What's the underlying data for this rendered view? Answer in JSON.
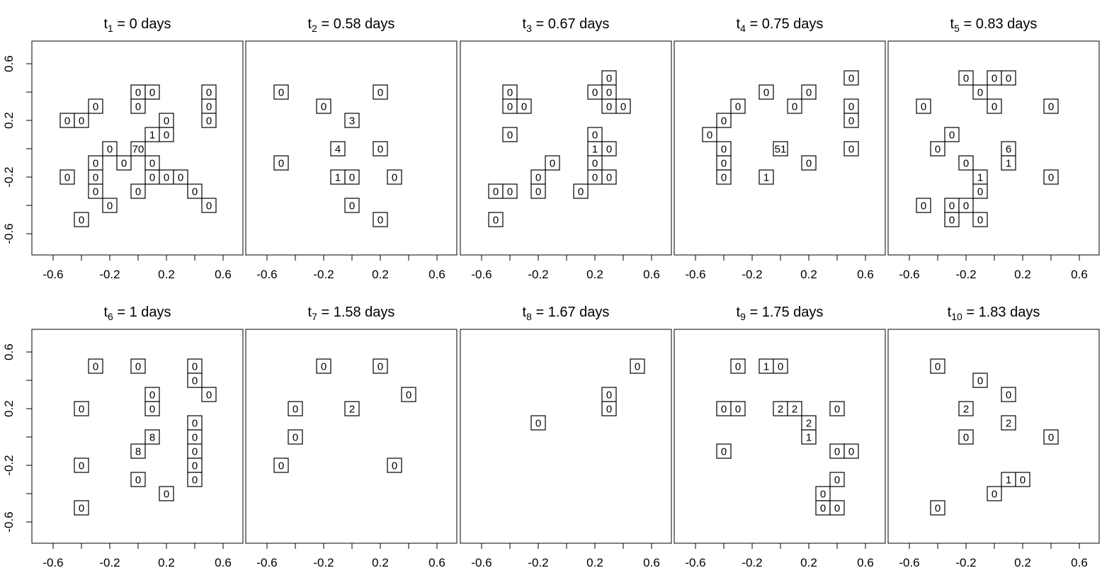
{
  "figure": {
    "axis_ticks": [
      "-0.6",
      "-0.2",
      "0.2",
      "0.6"
    ]
  },
  "chart_data": [
    {
      "type": "scatter",
      "title_sub": "1",
      "title_rest": " = 0 days",
      "xlim": [
        -0.6,
        0.6
      ],
      "ylim": [
        -0.6,
        0.6
      ],
      "cells": [
        {
          "x": -0.5,
          "y": 0.2,
          "v": "0"
        },
        {
          "x": -0.4,
          "y": 0.2,
          "v": "0"
        },
        {
          "x": -0.3,
          "y": 0.3,
          "v": "0"
        },
        {
          "x": 0.0,
          "y": 0.4,
          "v": "0"
        },
        {
          "x": 0.1,
          "y": 0.4,
          "v": "0"
        },
        {
          "x": 0.0,
          "y": 0.3,
          "v": "0"
        },
        {
          "x": 0.5,
          "y": 0.4,
          "v": "0"
        },
        {
          "x": 0.5,
          "y": 0.3,
          "v": "0"
        },
        {
          "x": 0.5,
          "y": 0.2,
          "v": "0"
        },
        {
          "x": 0.2,
          "y": 0.2,
          "v": "0"
        },
        {
          "x": 0.1,
          "y": 0.1,
          "v": "1"
        },
        {
          "x": 0.2,
          "y": 0.1,
          "v": "0"
        },
        {
          "x": -0.2,
          "y": 0.0,
          "v": "0"
        },
        {
          "x": 0.0,
          "y": 0.0,
          "v": "70"
        },
        {
          "x": -0.3,
          "y": -0.1,
          "v": "0"
        },
        {
          "x": -0.1,
          "y": -0.1,
          "v": "0"
        },
        {
          "x": 0.1,
          "y": -0.1,
          "v": "0"
        },
        {
          "x": -0.5,
          "y": -0.2,
          "v": "0"
        },
        {
          "x": -0.3,
          "y": -0.2,
          "v": "0"
        },
        {
          "x": 0.1,
          "y": -0.2,
          "v": "0"
        },
        {
          "x": 0.2,
          "y": -0.2,
          "v": "0"
        },
        {
          "x": 0.3,
          "y": -0.2,
          "v": "0"
        },
        {
          "x": -0.3,
          "y": -0.3,
          "v": "0"
        },
        {
          "x": 0.0,
          "y": -0.3,
          "v": "0"
        },
        {
          "x": 0.4,
          "y": -0.3,
          "v": "0"
        },
        {
          "x": -0.2,
          "y": -0.4,
          "v": "0"
        },
        {
          "x": 0.5,
          "y": -0.4,
          "v": "0"
        },
        {
          "x": -0.4,
          "y": -0.5,
          "v": "0"
        }
      ]
    },
    {
      "type": "scatter",
      "title_sub": "2",
      "title_rest": " = 0.58 days",
      "xlim": [
        -0.6,
        0.6
      ],
      "ylim": [
        -0.6,
        0.6
      ],
      "cells": [
        {
          "x": -0.5,
          "y": 0.4,
          "v": "0"
        },
        {
          "x": 0.2,
          "y": 0.4,
          "v": "0"
        },
        {
          "x": -0.2,
          "y": 0.3,
          "v": "0"
        },
        {
          "x": 0.0,
          "y": 0.2,
          "v": "3"
        },
        {
          "x": -0.1,
          "y": 0.0,
          "v": "4"
        },
        {
          "x": 0.2,
          "y": 0.0,
          "v": "0"
        },
        {
          "x": -0.5,
          "y": -0.1,
          "v": "0"
        },
        {
          "x": -0.1,
          "y": -0.2,
          "v": "1"
        },
        {
          "x": 0.0,
          "y": -0.2,
          "v": "0"
        },
        {
          "x": 0.3,
          "y": -0.2,
          "v": "0"
        },
        {
          "x": 0.0,
          "y": -0.4,
          "v": "0"
        },
        {
          "x": 0.2,
          "y": -0.5,
          "v": "0"
        }
      ]
    },
    {
      "type": "scatter",
      "title_sub": "3",
      "title_rest": " = 0.67 days",
      "xlim": [
        -0.6,
        0.6
      ],
      "ylim": [
        -0.6,
        0.6
      ],
      "cells": [
        {
          "x": 0.3,
          "y": 0.5,
          "v": "0"
        },
        {
          "x": -0.4,
          "y": 0.4,
          "v": "0"
        },
        {
          "x": 0.2,
          "y": 0.4,
          "v": "0"
        },
        {
          "x": 0.3,
          "y": 0.4,
          "v": "0"
        },
        {
          "x": -0.4,
          "y": 0.3,
          "v": "0"
        },
        {
          "x": -0.3,
          "y": 0.3,
          "v": "0"
        },
        {
          "x": 0.3,
          "y": 0.3,
          "v": "0"
        },
        {
          "x": 0.4,
          "y": 0.3,
          "v": "0"
        },
        {
          "x": -0.4,
          "y": 0.1,
          "v": "0"
        },
        {
          "x": 0.2,
          "y": 0.1,
          "v": "0"
        },
        {
          "x": 0.2,
          "y": 0.0,
          "v": "1"
        },
        {
          "x": 0.3,
          "y": 0.0,
          "v": "0"
        },
        {
          "x": -0.1,
          "y": -0.1,
          "v": "0"
        },
        {
          "x": 0.2,
          "y": -0.1,
          "v": "0"
        },
        {
          "x": -0.2,
          "y": -0.2,
          "v": "0"
        },
        {
          "x": 0.2,
          "y": -0.2,
          "v": "0"
        },
        {
          "x": 0.3,
          "y": -0.2,
          "v": "0"
        },
        {
          "x": -0.5,
          "y": -0.3,
          "v": "0"
        },
        {
          "x": -0.4,
          "y": -0.3,
          "v": "0"
        },
        {
          "x": -0.2,
          "y": -0.3,
          "v": "0"
        },
        {
          "x": 0.1,
          "y": -0.3,
          "v": "0"
        },
        {
          "x": -0.5,
          "y": -0.5,
          "v": "0"
        }
      ]
    },
    {
      "type": "scatter",
      "title_sub": "4",
      "title_rest": " = 0.75 days",
      "xlim": [
        -0.6,
        0.6
      ],
      "ylim": [
        -0.6,
        0.6
      ],
      "cells": [
        {
          "x": 0.5,
          "y": 0.5,
          "v": "0"
        },
        {
          "x": -0.1,
          "y": 0.4,
          "v": "0"
        },
        {
          "x": 0.2,
          "y": 0.4,
          "v": "0"
        },
        {
          "x": -0.3,
          "y": 0.3,
          "v": "0"
        },
        {
          "x": 0.1,
          "y": 0.3,
          "v": "0"
        },
        {
          "x": 0.5,
          "y": 0.3,
          "v": "0"
        },
        {
          "x": -0.4,
          "y": 0.2,
          "v": "0"
        },
        {
          "x": 0.5,
          "y": 0.2,
          "v": "0"
        },
        {
          "x": -0.5,
          "y": 0.1,
          "v": "0"
        },
        {
          "x": -0.4,
          "y": 0.0,
          "v": "0"
        },
        {
          "x": 0.0,
          "y": 0.0,
          "v": "51"
        },
        {
          "x": 0.5,
          "y": 0.0,
          "v": "0"
        },
        {
          "x": -0.4,
          "y": -0.1,
          "v": "0"
        },
        {
          "x": 0.2,
          "y": -0.1,
          "v": "0"
        },
        {
          "x": -0.4,
          "y": -0.2,
          "v": "0"
        },
        {
          "x": -0.1,
          "y": -0.2,
          "v": "1"
        }
      ]
    },
    {
      "type": "scatter",
      "title_sub": "5",
      "title_rest": " = 0.83 days",
      "xlim": [
        -0.6,
        0.6
      ],
      "ylim": [
        -0.6,
        0.6
      ],
      "cells": [
        {
          "x": -0.2,
          "y": 0.5,
          "v": "0"
        },
        {
          "x": 0.0,
          "y": 0.5,
          "v": "0"
        },
        {
          "x": 0.1,
          "y": 0.5,
          "v": "0"
        },
        {
          "x": -0.1,
          "y": 0.4,
          "v": "0"
        },
        {
          "x": -0.5,
          "y": 0.3,
          "v": "0"
        },
        {
          "x": 0.0,
          "y": 0.3,
          "v": "0"
        },
        {
          "x": 0.4,
          "y": 0.3,
          "v": "0"
        },
        {
          "x": -0.3,
          "y": 0.1,
          "v": "0"
        },
        {
          "x": -0.4,
          "y": 0.0,
          "v": "0"
        },
        {
          "x": 0.1,
          "y": 0.0,
          "v": "6"
        },
        {
          "x": -0.2,
          "y": -0.1,
          "v": "0"
        },
        {
          "x": 0.1,
          "y": -0.1,
          "v": "1"
        },
        {
          "x": -0.1,
          "y": -0.2,
          "v": "1"
        },
        {
          "x": 0.4,
          "y": -0.2,
          "v": "0"
        },
        {
          "x": -0.1,
          "y": -0.3,
          "v": "0"
        },
        {
          "x": -0.5,
          "y": -0.4,
          "v": "0"
        },
        {
          "x": -0.3,
          "y": -0.4,
          "v": "0"
        },
        {
          "x": -0.2,
          "y": -0.4,
          "v": "0"
        },
        {
          "x": -0.3,
          "y": -0.5,
          "v": "0"
        },
        {
          "x": -0.1,
          "y": -0.5,
          "v": "0"
        }
      ]
    },
    {
      "type": "scatter",
      "title_sub": "6",
      "title_rest": " = 1 days",
      "xlim": [
        -0.6,
        0.6
      ],
      "ylim": [
        -0.6,
        0.6
      ],
      "cells": [
        {
          "x": -0.3,
          "y": 0.5,
          "v": "0"
        },
        {
          "x": 0.0,
          "y": 0.5,
          "v": "0"
        },
        {
          "x": 0.4,
          "y": 0.5,
          "v": "0"
        },
        {
          "x": 0.4,
          "y": 0.4,
          "v": "0"
        },
        {
          "x": 0.1,
          "y": 0.3,
          "v": "0"
        },
        {
          "x": 0.5,
          "y": 0.3,
          "v": "0"
        },
        {
          "x": -0.4,
          "y": 0.2,
          "v": "0"
        },
        {
          "x": 0.1,
          "y": 0.2,
          "v": "0"
        },
        {
          "x": 0.4,
          "y": 0.1,
          "v": "0"
        },
        {
          "x": 0.1,
          "y": 0.0,
          "v": "8"
        },
        {
          "x": 0.4,
          "y": 0.0,
          "v": "0"
        },
        {
          "x": 0.0,
          "y": -0.1,
          "v": "8"
        },
        {
          "x": 0.4,
          "y": -0.1,
          "v": "0"
        },
        {
          "x": -0.4,
          "y": -0.2,
          "v": "0"
        },
        {
          "x": 0.4,
          "y": -0.2,
          "v": "0"
        },
        {
          "x": 0.0,
          "y": -0.3,
          "v": "0"
        },
        {
          "x": 0.4,
          "y": -0.3,
          "v": "0"
        },
        {
          "x": 0.2,
          "y": -0.4,
          "v": "0"
        },
        {
          "x": -0.4,
          "y": -0.5,
          "v": "0"
        }
      ]
    },
    {
      "type": "scatter",
      "title_sub": "7",
      "title_rest": " = 1.58 days",
      "xlim": [
        -0.6,
        0.6
      ],
      "ylim": [
        -0.6,
        0.6
      ],
      "cells": [
        {
          "x": -0.2,
          "y": 0.5,
          "v": "0"
        },
        {
          "x": 0.2,
          "y": 0.5,
          "v": "0"
        },
        {
          "x": 0.4,
          "y": 0.3,
          "v": "0"
        },
        {
          "x": -0.4,
          "y": 0.2,
          "v": "0"
        },
        {
          "x": 0.0,
          "y": 0.2,
          "v": "2"
        },
        {
          "x": -0.4,
          "y": 0.0,
          "v": "0"
        },
        {
          "x": -0.5,
          "y": -0.2,
          "v": "0"
        },
        {
          "x": 0.3,
          "y": -0.2,
          "v": "0"
        }
      ]
    },
    {
      "type": "scatter",
      "title_sub": "8",
      "title_rest": " = 1.67 days",
      "xlim": [
        -0.6,
        0.6
      ],
      "ylim": [
        -0.6,
        0.6
      ],
      "cells": [
        {
          "x": 0.5,
          "y": 0.5,
          "v": "0"
        },
        {
          "x": 0.3,
          "y": 0.3,
          "v": "0"
        },
        {
          "x": 0.3,
          "y": 0.2,
          "v": "0"
        },
        {
          "x": -0.2,
          "y": 0.1,
          "v": "0"
        }
      ]
    },
    {
      "type": "scatter",
      "title_sub": "9",
      "title_rest": " = 1.75 days",
      "xlim": [
        -0.6,
        0.6
      ],
      "ylim": [
        -0.6,
        0.6
      ],
      "cells": [
        {
          "x": -0.3,
          "y": 0.5,
          "v": "0"
        },
        {
          "x": -0.1,
          "y": 0.5,
          "v": "1"
        },
        {
          "x": 0.0,
          "y": 0.5,
          "v": "0"
        },
        {
          "x": -0.4,
          "y": 0.2,
          "v": "0"
        },
        {
          "x": -0.3,
          "y": 0.2,
          "v": "0"
        },
        {
          "x": 0.0,
          "y": 0.2,
          "v": "2"
        },
        {
          "x": 0.1,
          "y": 0.2,
          "v": "2"
        },
        {
          "x": 0.4,
          "y": 0.2,
          "v": "0"
        },
        {
          "x": 0.2,
          "y": 0.1,
          "v": "2"
        },
        {
          "x": 0.2,
          "y": 0.0,
          "v": "1"
        },
        {
          "x": -0.4,
          "y": -0.1,
          "v": "0"
        },
        {
          "x": 0.4,
          "y": -0.1,
          "v": "0"
        },
        {
          "x": 0.5,
          "y": -0.1,
          "v": "0"
        },
        {
          "x": 0.4,
          "y": -0.3,
          "v": "0"
        },
        {
          "x": 0.3,
          "y": -0.4,
          "v": "0"
        },
        {
          "x": 0.3,
          "y": -0.5,
          "v": "0"
        },
        {
          "x": 0.4,
          "y": -0.5,
          "v": "0"
        }
      ]
    },
    {
      "type": "scatter",
      "title_sub": "10",
      "title_rest": " = 1.83 days",
      "xlim": [
        -0.6,
        0.6
      ],
      "ylim": [
        -0.6,
        0.6
      ],
      "cells": [
        {
          "x": -0.4,
          "y": 0.5,
          "v": "0"
        },
        {
          "x": -0.1,
          "y": 0.4,
          "v": "0"
        },
        {
          "x": 0.1,
          "y": 0.3,
          "v": "0"
        },
        {
          "x": -0.2,
          "y": 0.2,
          "v": "2"
        },
        {
          "x": 0.1,
          "y": 0.1,
          "v": "2"
        },
        {
          "x": -0.2,
          "y": 0.0,
          "v": "0"
        },
        {
          "x": 0.4,
          "y": 0.0,
          "v": "0"
        },
        {
          "x": 0.1,
          "y": -0.3,
          "v": "1"
        },
        {
          "x": 0.2,
          "y": -0.3,
          "v": "0"
        },
        {
          "x": 0.0,
          "y": -0.4,
          "v": "0"
        },
        {
          "x": -0.4,
          "y": -0.5,
          "v": "0"
        }
      ]
    }
  ]
}
